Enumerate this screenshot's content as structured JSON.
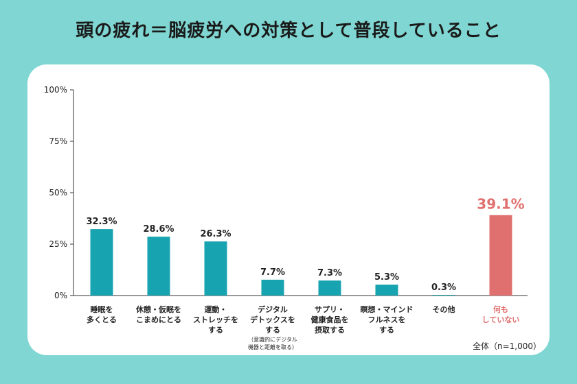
{
  "chart_data": {
    "type": "bar",
    "title": "頭の疲れ＝脳疲労への対策として普段していること",
    "categories": [
      [
        "睡眠を",
        "多くとる"
      ],
      [
        "休憩・仮眠を",
        "こまめにとる"
      ],
      [
        "運動・",
        "ストレッチを",
        "する"
      ],
      [
        "デジタル",
        "デトックスを",
        "する"
      ],
      [
        "サプリ・",
        "健康食品を",
        "摂取する"
      ],
      [
        "瞑想・マインド",
        "フルネスを",
        "する"
      ],
      [
        "その他"
      ],
      [
        "何も",
        "していない"
      ]
    ],
    "category_notes": [
      null,
      null,
      null,
      [
        "（意識的にデジタル",
        "機器と距離を取る）"
      ],
      null,
      null,
      null,
      null
    ],
    "values": [
      32.3,
      28.6,
      26.3,
      7.7,
      7.3,
      5.3,
      0.3,
      39.1
    ],
    "value_labels": [
      "32.3%",
      "28.6%",
      "26.3%",
      "7.7%",
      "7.3%",
      "5.3%",
      "0.3%",
      "39.1%"
    ],
    "yticks": [
      "0%",
      "25%",
      "50%",
      "75%",
      "100%"
    ],
    "ylim": [
      0,
      100
    ],
    "highlight_index": 7,
    "colors": {
      "bar": "#18a3b1",
      "highlight": "#e06f6f",
      "background": "#7fd6d2"
    },
    "footnote": "全体（n=1,000）"
  }
}
